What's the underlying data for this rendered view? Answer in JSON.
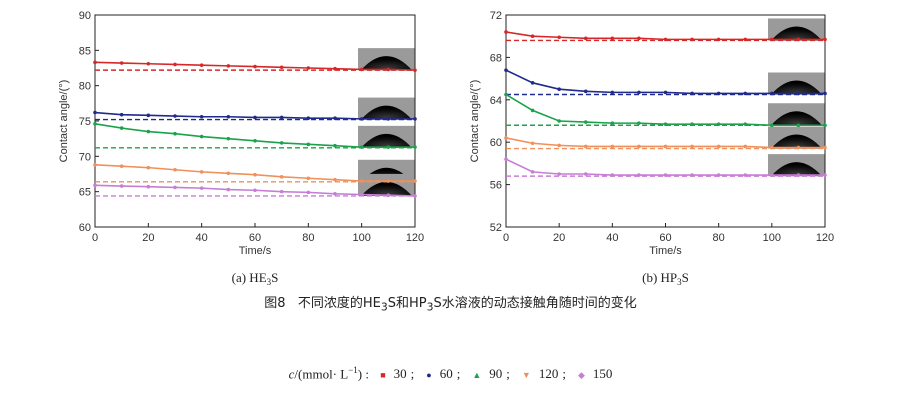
{
  "caption": {
    "label": "图8",
    "text_before": "不同浓度的HE",
    "sub1": "3",
    "text_mid": "S和HP",
    "sub2": "3",
    "text_after": "S水溶液的动态接触角随时间的变化"
  },
  "legend": {
    "var": "c",
    "unit_text": "/(mmol· L",
    "unit_sup": "−1",
    "unit_close": ") :",
    "items": [
      {
        "label": "30",
        "color": "#d62828",
        "marker": "■"
      },
      {
        "label": "60",
        "color": "#1f2a8c",
        "marker": "●"
      },
      {
        "label": "90",
        "color": "#1aa34a",
        "marker": "▲"
      },
      {
        "label": "120",
        "color": "#f0905a",
        "marker": "▼"
      },
      {
        "label": "150",
        "color": "#c77dd6",
        "marker": "◆"
      }
    ]
  },
  "chart_data": [
    {
      "type": "line",
      "panel_letter": "(a)",
      "panel_base": "HE",
      "panel_sub": "3",
      "panel_end": "S",
      "xlabel": "Time/s",
      "ylabel": "Contact angle/(°)",
      "xlim": [
        0,
        120
      ],
      "ylim": [
        60,
        90
      ],
      "xticks": [
        0,
        20,
        40,
        60,
        80,
        100,
        120
      ],
      "yticks": [
        60,
        65,
        70,
        75,
        80,
        85,
        90
      ],
      "x": [
        0,
        10,
        20,
        30,
        40,
        50,
        60,
        70,
        80,
        90,
        100,
        110,
        120
      ],
      "series": [
        {
          "color": "#d62828",
          "values": [
            83.3,
            83.2,
            83.1,
            83.0,
            82.9,
            82.8,
            82.7,
            82.6,
            82.5,
            82.4,
            82.3,
            82.3,
            82.2
          ],
          "equilibrium": 82.2
        },
        {
          "color": "#1f2a8c",
          "values": [
            76.2,
            75.9,
            75.8,
            75.7,
            75.6,
            75.6,
            75.5,
            75.5,
            75.4,
            75.4,
            75.3,
            75.3,
            75.3
          ],
          "equilibrium": 75.2
        },
        {
          "color": "#1aa34a",
          "values": [
            74.6,
            74.0,
            73.5,
            73.2,
            72.8,
            72.5,
            72.2,
            71.9,
            71.7,
            71.5,
            71.3,
            71.3,
            71.3
          ],
          "equilibrium": 71.2
        },
        {
          "color": "#f0905a",
          "values": [
            68.8,
            68.6,
            68.4,
            68.1,
            67.8,
            67.6,
            67.4,
            67.1,
            66.9,
            66.7,
            66.5,
            66.5,
            66.5
          ],
          "equilibrium": 66.4
        },
        {
          "color": "#c77dd6",
          "values": [
            65.9,
            65.8,
            65.7,
            65.6,
            65.5,
            65.3,
            65.2,
            65.0,
            64.9,
            64.7,
            64.6,
            64.5,
            64.4
          ],
          "equilibrium": 64.4
        }
      ]
    },
    {
      "type": "line",
      "panel_letter": "(b)",
      "panel_base": "HP",
      "panel_sub": "3",
      "panel_end": "S",
      "xlabel": "Time/s",
      "ylabel": "Contact angle/(°)",
      "xlim": [
        0,
        120
      ],
      "ylim": [
        52,
        72
      ],
      "xticks": [
        0,
        20,
        40,
        60,
        80,
        100,
        120
      ],
      "yticks": [
        52,
        56,
        60,
        64,
        68,
        72
      ],
      "x": [
        0,
        10,
        20,
        30,
        40,
        50,
        60,
        70,
        80,
        90,
        100,
        110,
        120
      ],
      "series": [
        {
          "color": "#d62828",
          "values": [
            70.4,
            70.0,
            69.9,
            69.8,
            69.8,
            69.8,
            69.7,
            69.7,
            69.7,
            69.7,
            69.7,
            69.7,
            69.7
          ],
          "equilibrium": 69.6
        },
        {
          "color": "#1f2a8c",
          "values": [
            66.8,
            65.6,
            65.0,
            64.8,
            64.7,
            64.7,
            64.7,
            64.6,
            64.6,
            64.6,
            64.6,
            64.6,
            64.6
          ],
          "equilibrium": 64.5
        },
        {
          "color": "#1aa34a",
          "values": [
            64.5,
            63.0,
            62.0,
            61.9,
            61.8,
            61.8,
            61.7,
            61.7,
            61.7,
            61.7,
            61.6,
            61.6,
            61.6
          ],
          "equilibrium": 61.6
        },
        {
          "color": "#f0905a",
          "values": [
            60.4,
            59.9,
            59.7,
            59.6,
            59.6,
            59.6,
            59.6,
            59.6,
            59.6,
            59.6,
            59.5,
            59.5,
            59.5
          ],
          "equilibrium": 59.4
        },
        {
          "color": "#c77dd6",
          "values": [
            58.4,
            57.2,
            57.0,
            57.0,
            56.9,
            56.9,
            56.9,
            56.9,
            56.9,
            56.9,
            56.9,
            56.9,
            56.9
          ],
          "equilibrium": 56.8
        }
      ]
    }
  ]
}
